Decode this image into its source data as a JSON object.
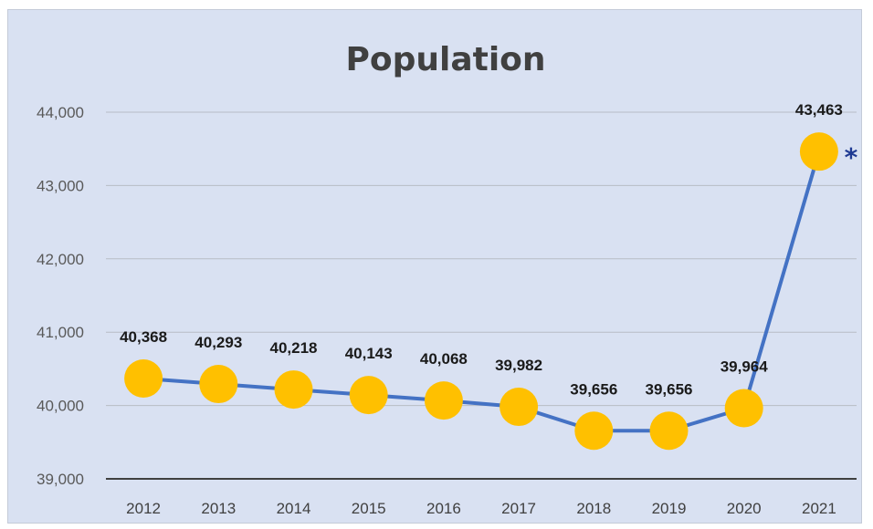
{
  "chart_data": {
    "type": "line",
    "title": "Population",
    "xlabel": "",
    "ylabel": "",
    "categories": [
      "2012",
      "2013",
      "2014",
      "2015",
      "2016",
      "2017",
      "2018",
      "2019",
      "2020",
      "2021"
    ],
    "values": [
      40368,
      40293,
      40218,
      40143,
      40068,
      39982,
      39656,
      39656,
      39964,
      43463
    ],
    "data_labels": [
      "40,368",
      "40,293",
      "40,218",
      "40,143",
      "40,068",
      "39,982",
      "39,656",
      "39,656",
      "39,964",
      "43,463"
    ],
    "ylim": [
      39000,
      44000
    ],
    "yticks": [
      39000,
      40000,
      41000,
      42000,
      43000,
      44000
    ],
    "ytick_labels": [
      "39,000",
      "40,000",
      "41,000",
      "42,000",
      "43,000",
      "44,000"
    ],
    "grid": true,
    "legend": "none",
    "annotation": "*",
    "colors": {
      "line": "#4472c4",
      "marker": "#ffc000",
      "background": "#d9e1f2",
      "annotation": "#1f3a93"
    }
  }
}
